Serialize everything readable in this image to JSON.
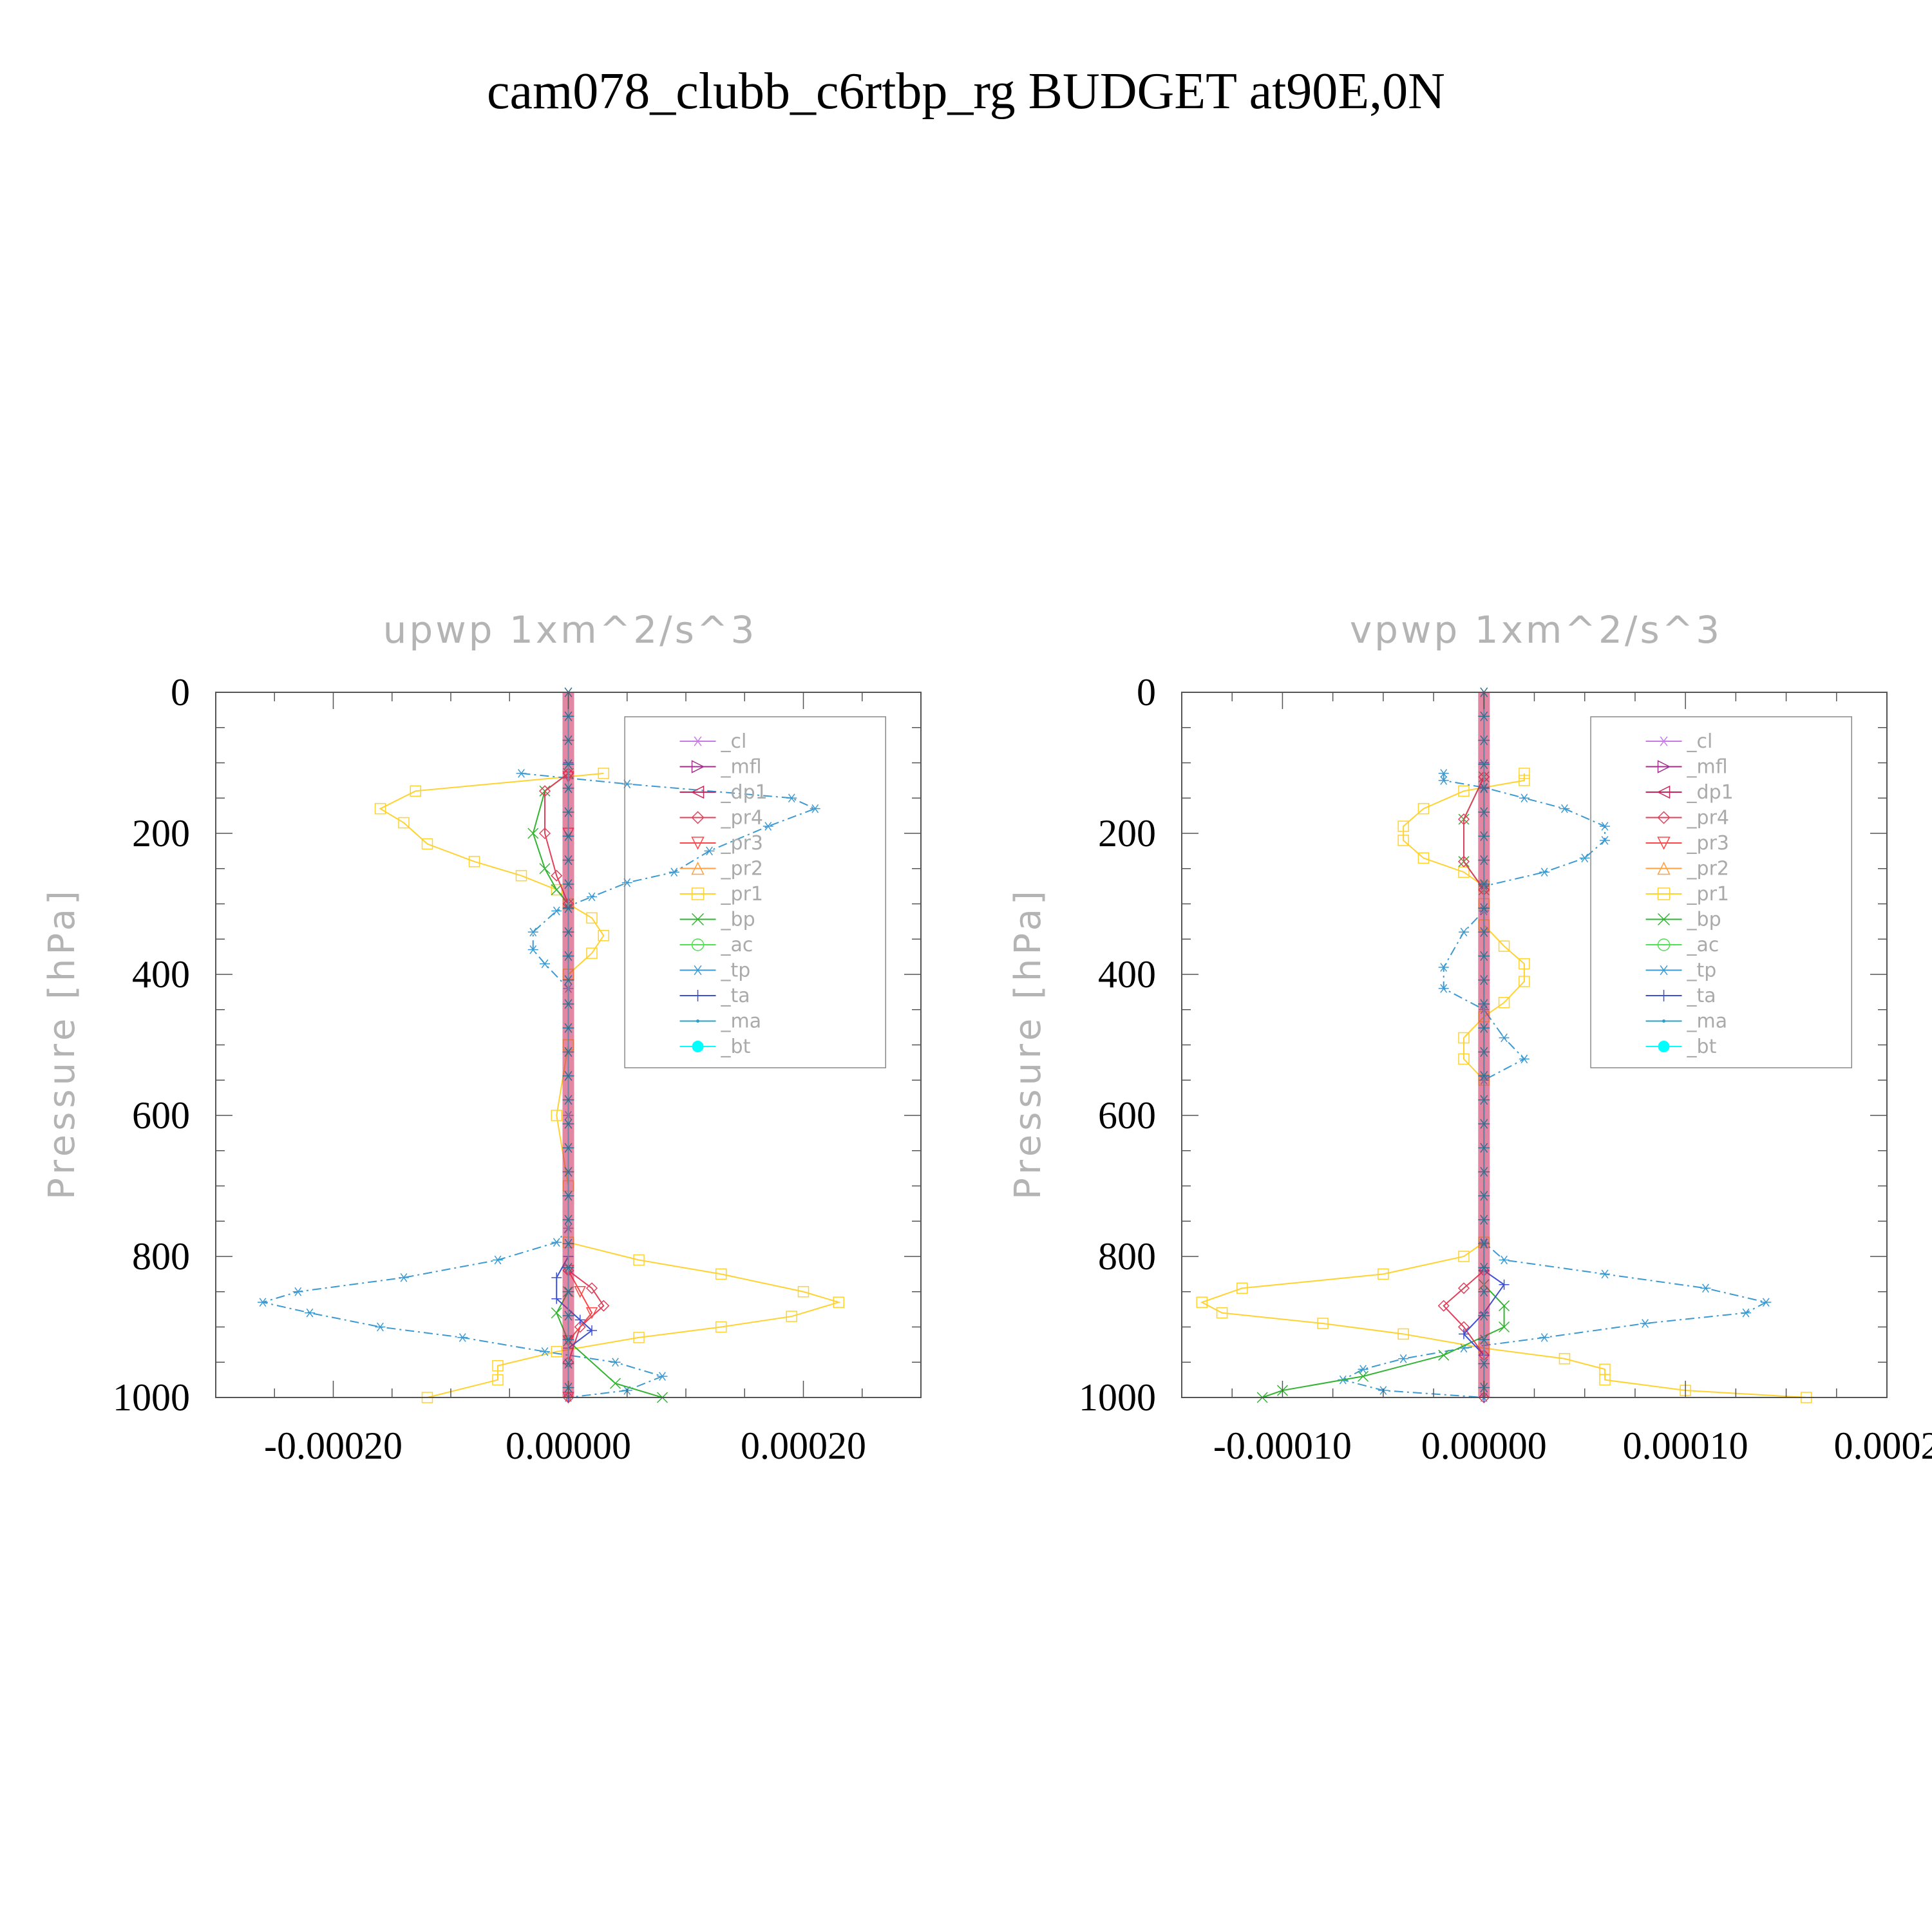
{
  "title": "cam078_clubb_c6rtbp_rg  BUDGET at90E,0N",
  "legend_entries": [
    {
      "name": "_cl",
      "color": "#c77ae6",
      "marker": "star"
    },
    {
      "name": "_mfl",
      "color": "#a0308c",
      "marker": "tri-right"
    },
    {
      "name": "_dp1",
      "color": "#c8245a",
      "marker": "tri-left"
    },
    {
      "name": "_pr4",
      "color": "#e0405a",
      "marker": "diamond"
    },
    {
      "name": "_pr3",
      "color": "#ff4646",
      "marker": "tri-down"
    },
    {
      "name": "_pr2",
      "color": "#ffa040",
      "marker": "tri-up"
    },
    {
      "name": "_pr1",
      "color": "#ffd230",
      "marker": "square"
    },
    {
      "name": "_bp",
      "color": "#32b432",
      "marker": "x"
    },
    {
      "name": "_ac",
      "color": "#50e050",
      "marker": "circle"
    },
    {
      "name": "_tp",
      "color": "#3c9ad2",
      "marker": "asterisk"
    },
    {
      "name": "_ta",
      "color": "#3c50d2",
      "marker": "plus"
    },
    {
      "name": "_ma",
      "color": "#28a0c8",
      "marker": "dot"
    },
    {
      "name": "_bt",
      "color": "#00ffff",
      "marker": "filled-circle"
    }
  ],
  "chart_data": [
    {
      "type": "line",
      "title": "upwp   1xm^2/s^3",
      "ylabel": "Pressure [hPa]",
      "xlim": [
        -0.0003,
        0.0003
      ],
      "ylim": [
        1000,
        0
      ],
      "xticks": [
        -0.0002,
        0.0,
        0.0002
      ],
      "xtick_labels": [
        "-0.00020",
        "0.00000",
        "0.00020"
      ],
      "yticks": [
        0,
        200,
        400,
        600,
        800,
        1000
      ],
      "ytick_labels": [
        "0",
        "200",
        "400",
        "600",
        "800",
        "1000"
      ],
      "legend": "top-right",
      "series": [
        {
          "name": "_pr1",
          "points": [
            [
              3e-05,
              115
            ],
            [
              -0.00013,
              140
            ],
            [
              -0.00016,
              165
            ],
            [
              -0.00014,
              185
            ],
            [
              -0.00012,
              215
            ],
            [
              -8e-05,
              240
            ],
            [
              -4e-05,
              260
            ],
            [
              -1e-05,
              280
            ],
            [
              0.0,
              300
            ],
            [
              2e-05,
              320
            ],
            [
              3e-05,
              345
            ],
            [
              2e-05,
              370
            ],
            [
              0.0,
              400
            ],
            [
              0.0,
              500
            ],
            [
              -1e-05,
              600
            ],
            [
              0.0,
              700
            ],
            [
              0.0,
              780
            ],
            [
              6e-05,
              805
            ],
            [
              0.00013,
              825
            ],
            [
              0.0002,
              850
            ],
            [
              0.00023,
              865
            ],
            [
              0.00019,
              885
            ],
            [
              0.00013,
              900
            ],
            [
              6e-05,
              915
            ],
            [
              -1e-05,
              935
            ],
            [
              -6e-05,
              955
            ],
            [
              -6e-05,
              975
            ],
            [
              -0.00012,
              1000
            ]
          ]
        },
        {
          "name": "_tp",
          "points": [
            [
              -4e-05,
              115
            ],
            [
              5e-05,
              130
            ],
            [
              0.00019,
              150
            ],
            [
              0.00021,
              165
            ],
            [
              0.00017,
              190
            ],
            [
              0.00012,
              225
            ],
            [
              9e-05,
              255
            ],
            [
              5e-05,
              270
            ],
            [
              2e-05,
              290
            ],
            [
              -1e-05,
              310
            ],
            [
              -3e-05,
              340
            ],
            [
              -3e-05,
              365
            ],
            [
              -2e-05,
              385
            ],
            [
              0.0,
              420
            ],
            [
              0.0,
              600
            ],
            [
              0.0,
              760
            ],
            [
              -1e-05,
              780
            ],
            [
              -6e-05,
              805
            ],
            [
              -0.00014,
              830
            ],
            [
              -0.00023,
              850
            ],
            [
              -0.00026,
              865
            ],
            [
              -0.00022,
              880
            ],
            [
              -0.00016,
              900
            ],
            [
              -9e-05,
              915
            ],
            [
              -2e-05,
              935
            ],
            [
              4e-05,
              950
            ],
            [
              8e-05,
              970
            ],
            [
              5e-05,
              990
            ],
            [
              0.0,
              1000
            ]
          ]
        },
        {
          "name": "_bp",
          "points": [
            [
              0.0,
              115
            ],
            [
              -2e-05,
              140
            ],
            [
              -3e-05,
              200
            ],
            [
              -2e-05,
              250
            ],
            [
              -1e-05,
              280
            ],
            [
              0.0,
              300
            ],
            [
              0.0,
              850
            ],
            [
              -1e-05,
              880
            ],
            [
              0.0,
              920
            ],
            [
              4e-05,
              980
            ],
            [
              8e-05,
              1000
            ]
          ]
        },
        {
          "name": "_pr4",
          "points": [
            [
              0.0,
              115
            ],
            [
              -2e-05,
              140
            ],
            [
              -2e-05,
              200
            ],
            [
              -1e-05,
              260
            ],
            [
              0.0,
              300
            ],
            [
              0.0,
              820
            ],
            [
              2e-05,
              845
            ],
            [
              3e-05,
              870
            ],
            [
              1e-05,
              900
            ],
            [
              0.0,
              950
            ],
            [
              0.0,
              1000
            ]
          ]
        },
        {
          "name": "_pr3",
          "points": [
            [
              0.0,
              120
            ],
            [
              0.0,
              200
            ],
            [
              0.0,
              820
            ],
            [
              1e-05,
              850
            ],
            [
              2e-05,
              880
            ],
            [
              0.0,
              920
            ],
            [
              0.0,
              1000
            ]
          ]
        },
        {
          "name": "_ta",
          "points": [
            [
              0.0,
              100
            ],
            [
              0.0,
              800
            ],
            [
              -1e-05,
              830
            ],
            [
              -1e-05,
              860
            ],
            [
              1e-05,
              890
            ],
            [
              2e-05,
              905
            ],
            [
              0.0,
              930
            ],
            [
              0.0,
              1000
            ]
          ]
        },
        {
          "name": "_cl",
          "points": [
            [
              0.0,
              0
            ],
            [
              0.0,
              1000
            ]
          ]
        },
        {
          "name": "_bt",
          "points": [
            [
              0.0,
              0
            ],
            [
              0.0,
              1000
            ]
          ]
        }
      ]
    },
    {
      "type": "line",
      "title": "vpwp   1xm^2/s^3",
      "ylabel": "Pressure [hPa]",
      "xlim": [
        -0.00015,
        0.0002
      ],
      "ylim": [
        1000,
        0
      ],
      "xticks": [
        -0.0001,
        0.0,
        0.0001,
        0.0002
      ],
      "xtick_labels": [
        "-0.00010",
        "0.00000",
        "0.00010",
        "0.0002"
      ],
      "yticks": [
        0,
        200,
        400,
        600,
        800,
        1000
      ],
      "ytick_labels": [
        "0",
        "200",
        "400",
        "600",
        "800",
        "1000"
      ],
      "legend": "top-right",
      "series": [
        {
          "name": "_pr1",
          "points": [
            [
              2e-05,
              115
            ],
            [
              2e-05,
              125
            ],
            [
              -1e-05,
              140
            ],
            [
              -3e-05,
              165
            ],
            [
              -4e-05,
              190
            ],
            [
              -4e-05,
              210
            ],
            [
              -3e-05,
              235
            ],
            [
              -1e-05,
              255
            ],
            [
              0.0,
              275
            ],
            [
              0.0,
              300
            ],
            [
              0.0,
              330
            ],
            [
              1e-05,
              360
            ],
            [
              2e-05,
              385
            ],
            [
              2e-05,
              410
            ],
            [
              1e-05,
              440
            ],
            [
              0.0,
              460
            ],
            [
              -1e-05,
              490
            ],
            [
              -1e-05,
              520
            ],
            [
              0.0,
              550
            ],
            [
              0.0,
              780
            ],
            [
              -1e-05,
              800
            ],
            [
              -5e-05,
              825
            ],
            [
              -0.00012,
              845
            ],
            [
              -0.00014,
              865
            ],
            [
              -0.00013,
              880
            ],
            [
              -8e-05,
              895
            ],
            [
              -4e-05,
              910
            ],
            [
              0.0,
              930
            ],
            [
              4e-05,
              945
            ],
            [
              6e-05,
              960
            ],
            [
              6e-05,
              975
            ],
            [
              0.0001,
              990
            ],
            [
              0.00016,
              1000
            ]
          ]
        },
        {
          "name": "_tp",
          "points": [
            [
              -2e-05,
              115
            ],
            [
              -2e-05,
              125
            ],
            [
              0.0,
              135
            ],
            [
              2e-05,
              150
            ],
            [
              4e-05,
              165
            ],
            [
              6e-05,
              190
            ],
            [
              6e-05,
              210
            ],
            [
              5e-05,
              235
            ],
            [
              3e-05,
              255
            ],
            [
              0.0,
              275
            ],
            [
              0.0,
              310
            ],
            [
              -1e-05,
              340
            ],
            [
              -2e-05,
              390
            ],
            [
              -2e-05,
              420
            ],
            [
              0.0,
              450
            ],
            [
              1e-05,
              490
            ],
            [
              2e-05,
              520
            ],
            [
              0.0,
              550
            ],
            [
              0.0,
              780
            ],
            [
              1e-05,
              805
            ],
            [
              6e-05,
              825
            ],
            [
              0.00011,
              845
            ],
            [
              0.00014,
              865
            ],
            [
              0.00013,
              880
            ],
            [
              8e-05,
              895
            ],
            [
              3e-05,
              915
            ],
            [
              -1e-05,
              930
            ],
            [
              -4e-05,
              945
            ],
            [
              -6e-05,
              960
            ],
            [
              -7e-05,
              975
            ],
            [
              -5e-05,
              990
            ],
            [
              0.0,
              1000
            ]
          ]
        },
        {
          "name": "_bp",
          "points": [
            [
              0.0,
              120
            ],
            [
              -1e-05,
              180
            ],
            [
              -1e-05,
              240
            ],
            [
              0.0,
              280
            ],
            [
              0.0,
              840
            ],
            [
              1e-05,
              870
            ],
            [
              1e-05,
              900
            ],
            [
              -2e-05,
              940
            ],
            [
              -6e-05,
              970
            ],
            [
              -0.0001,
              990
            ],
            [
              -0.00011,
              1000
            ]
          ]
        },
        {
          "name": "_pr4",
          "points": [
            [
              0.0,
              120
            ],
            [
              -1e-05,
              180
            ],
            [
              -1e-05,
              240
            ],
            [
              0.0,
              280
            ],
            [
              0.0,
              820
            ],
            [
              -1e-05,
              845
            ],
            [
              -2e-05,
              870
            ],
            [
              -1e-05,
              900
            ],
            [
              0.0,
              940
            ],
            [
              0.0,
              1000
            ]
          ]
        },
        {
          "name": "_ta",
          "points": [
            [
              0.0,
              100
            ],
            [
              0.0,
              820
            ],
            [
              1e-05,
              840
            ],
            [
              0.0,
              880
            ],
            [
              -1e-05,
              910
            ],
            [
              0.0,
              940
            ],
            [
              0.0,
              1000
            ]
          ]
        },
        {
          "name": "_cl",
          "points": [
            [
              0.0,
              0
            ],
            [
              0.0,
              1000
            ]
          ]
        },
        {
          "name": "_bt",
          "points": [
            [
              0.0,
              0
            ],
            [
              0.0,
              1000
            ]
          ]
        }
      ]
    }
  ]
}
